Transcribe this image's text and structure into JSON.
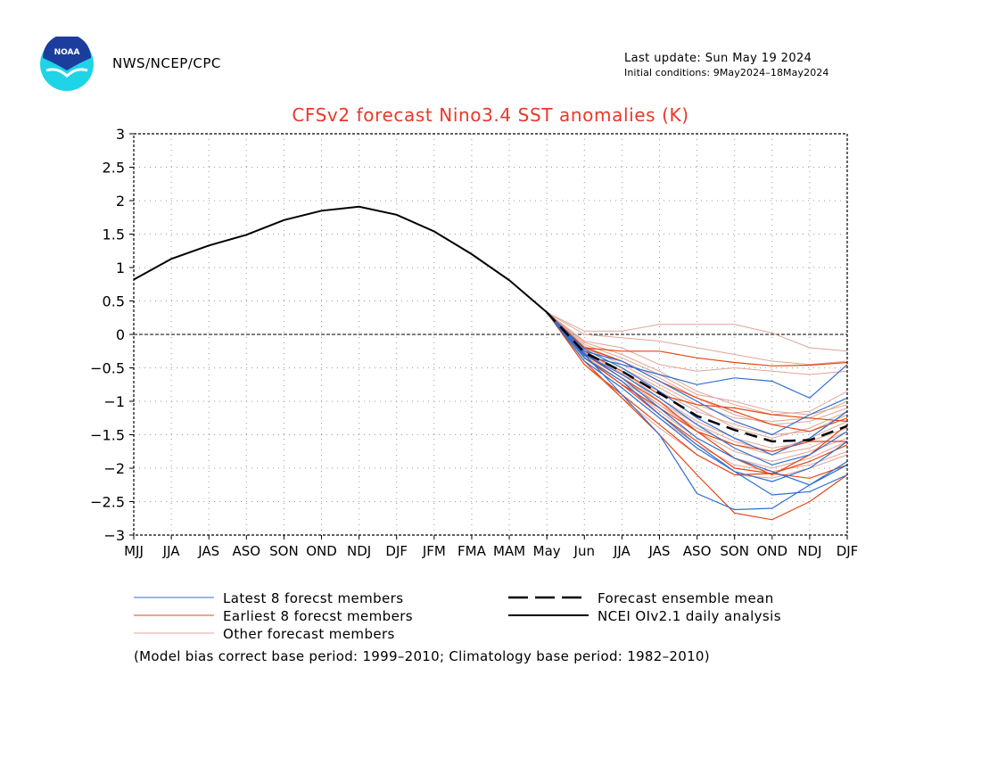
{
  "header": {
    "org": "NWS/NCEP/CPC",
    "last_update": "Last update: Sun May 19 2024",
    "initial_conditions": "Initial conditions: 9May2024–18May2024",
    "logo_text": "NOAA"
  },
  "footnote": "(Model bias correct base period: 1999–2010; Climatology base period: 1982–2010)",
  "colors": {
    "title": "#e8392a",
    "latest": "#2f6fd0",
    "earliest": "#e64512",
    "other": "#e0a597",
    "analysis": "#000000",
    "mean": "#000000",
    "grid": "#999999",
    "logo_blue": "#1a3d9e",
    "logo_cyan": "#1ed4e6"
  },
  "chart_data": {
    "type": "line",
    "title": "CFSv2 forecast Nino3.4 SST anomalies (K)",
    "xlabel": "",
    "ylabel": "",
    "categories": [
      "MJJ",
      "JJA",
      "JAS",
      "ASO",
      "SON",
      "OND",
      "NDJ",
      "DJF",
      "JFM",
      "FMA",
      "MAM",
      "May",
      "Jun",
      "JJA",
      "JAS",
      "ASO",
      "SON",
      "OND",
      "NDJ",
      "DJF"
    ],
    "ylim": [
      -3,
      3
    ],
    "yticks": [
      3,
      2.5,
      2,
      1.5,
      1,
      0.5,
      0,
      -0.5,
      -1,
      -1.5,
      -2,
      -2.5,
      -3
    ],
    "ytick_labels": [
      "3",
      "2.5",
      "2",
      "1.5",
      "1",
      "0.5",
      "0",
      "−0.5",
      "−1",
      "−1.5",
      "−2",
      "−2.5",
      "−3"
    ],
    "grid": true,
    "zero_line": true,
    "legend": [
      {
        "key": "latest",
        "label": "Latest 8 forecst members",
        "style": "thin-blue"
      },
      {
        "key": "earliest",
        "label": "Earliest 8 forecst members",
        "style": "thin-red"
      },
      {
        "key": "other",
        "label": "Other forecast members",
        "style": "thin-pink"
      },
      {
        "key": "mean",
        "label": "Forecast ensemble mean",
        "style": "dashed-black"
      },
      {
        "key": "analysis",
        "label": "NCEI OIv2.1 daily analysis",
        "style": "solid-black"
      }
    ],
    "analysis": {
      "name": "NCEI OIv2.1 daily analysis",
      "values": [
        0.82,
        1.13,
        1.33,
        1.49,
        1.71,
        1.85,
        1.91,
        1.79,
        1.54,
        1.2,
        0.81,
        0.33
      ]
    },
    "ensemble_mean": {
      "name": "Forecast ensemble mean",
      "start_index": 11,
      "values": [
        0.33,
        -0.27,
        -0.55,
        -0.88,
        -1.22,
        -1.43,
        -1.6,
        -1.58,
        -1.37
      ]
    },
    "latest_members": [
      [
        0.33,
        -0.32,
        -0.45,
        -0.6,
        -0.75,
        -0.65,
        -0.7,
        -0.95,
        -0.45
      ],
      [
        0.33,
        -0.25,
        -0.4,
        -0.7,
        -1.0,
        -1.3,
        -1.5,
        -1.2,
        -0.95
      ],
      [
        0.33,
        -0.35,
        -0.7,
        -1.2,
        -1.65,
        -2.05,
        -2.2,
        -2.0,
        -1.6
      ],
      [
        0.33,
        -0.3,
        -0.9,
        -1.5,
        -2.38,
        -2.62,
        -2.6,
        -2.25,
        -1.9
      ],
      [
        0.33,
        -0.28,
        -0.65,
        -1.1,
        -1.55,
        -1.85,
        -2.05,
        -2.25,
        -1.95
      ],
      [
        0.33,
        -0.22,
        -0.5,
        -0.85,
        -1.25,
        -1.55,
        -1.8,
        -1.55,
        -1.15
      ],
      [
        0.33,
        -0.4,
        -0.8,
        -1.25,
        -1.7,
        -2.05,
        -2.4,
        -2.35,
        -2.1
      ],
      [
        0.33,
        -0.3,
        -0.6,
        -0.95,
        -1.35,
        -1.7,
        -1.95,
        -1.8,
        -1.45
      ]
    ],
    "earliest_members": [
      [
        0.33,
        -0.2,
        -0.25,
        -0.25,
        -0.35,
        -0.42,
        -0.47,
        -0.46,
        -0.42
      ],
      [
        0.33,
        -0.35,
        -0.75,
        -1.2,
        -1.6,
        -2.0,
        -2.08,
        -1.9,
        -1.65
      ],
      [
        0.33,
        -0.4,
        -0.95,
        -1.5,
        -2.1,
        -2.67,
        -2.77,
        -2.5,
        -2.1
      ],
      [
        0.33,
        -0.3,
        -0.65,
        -1.0,
        -1.45,
        -1.85,
        -2.1,
        -1.8,
        -1.35
      ],
      [
        0.33,
        -0.45,
        -0.9,
        -1.35,
        -1.8,
        -2.1,
        -2.08,
        -2.15,
        -1.95
      ],
      [
        0.33,
        -0.25,
        -0.55,
        -0.9,
        -1.05,
        -1.1,
        -1.2,
        -1.25,
        -1.3
      ],
      [
        0.33,
        -0.35,
        -0.75,
        -1.1,
        -1.45,
        -1.65,
        -1.75,
        -1.6,
        -1.6
      ],
      [
        0.33,
        -0.2,
        -0.4,
        -0.7,
        -0.95,
        -1.15,
        -1.35,
        -1.45,
        -1.25
      ]
    ],
    "other_members": [
      [
        0.33,
        0.05,
        0.05,
        0.15,
        0.15,
        0.15,
        0.02,
        -0.2,
        -0.25
      ],
      [
        0.33,
        0.0,
        -0.05,
        -0.1,
        -0.2,
        -0.3,
        -0.4,
        -0.45,
        -0.4
      ],
      [
        0.33,
        -0.1,
        -0.2,
        -0.45,
        -0.55,
        -0.5,
        -0.55,
        -0.6,
        -0.55
      ],
      [
        0.33,
        -0.15,
        -0.35,
        -0.6,
        -0.9,
        -1.0,
        -1.15,
        -1.2,
        -1.05
      ],
      [
        0.33,
        -0.2,
        -0.45,
        -0.75,
        -1.05,
        -1.25,
        -1.3,
        -1.25,
        -1.0
      ],
      [
        0.33,
        -0.25,
        -0.55,
        -0.95,
        -1.3,
        -1.55,
        -1.7,
        -1.6,
        -1.4
      ],
      [
        0.33,
        -0.3,
        -0.65,
        -1.05,
        -1.45,
        -1.75,
        -1.9,
        -1.75,
        -1.55
      ],
      [
        0.33,
        -0.35,
        -0.7,
        -1.15,
        -1.55,
        -1.85,
        -2.0,
        -1.85,
        -1.6
      ],
      [
        0.33,
        -0.4,
        -0.8,
        -1.25,
        -1.65,
        -1.95,
        -2.05,
        -1.95,
        -1.75
      ],
      [
        0.33,
        -0.28,
        -0.6,
        -0.85,
        -1.15,
        -1.35,
        -1.5,
        -1.45,
        -1.2
      ],
      [
        0.33,
        -0.22,
        -0.5,
        -0.8,
        -1.1,
        -1.4,
        -1.55,
        -1.4,
        -1.15
      ],
      [
        0.33,
        -0.18,
        -0.4,
        -0.65,
        -0.95,
        -1.2,
        -1.35,
        -1.3,
        -1.1
      ],
      [
        0.33,
        -0.32,
        -0.7,
        -1.05,
        -1.4,
        -1.65,
        -1.8,
        -1.7,
        -1.45
      ],
      [
        0.33,
        -0.45,
        -0.95,
        -1.4,
        -1.8,
        -2.1,
        -2.15,
        -2.0,
        -1.8
      ],
      [
        0.33,
        -0.12,
        -0.3,
        -0.55,
        -0.85,
        -1.05,
        -1.2,
        -1.15,
        -0.85
      ],
      [
        0.33,
        -0.26,
        -0.58,
        -1.0,
        -1.35,
        -1.6,
        -1.75,
        -1.55,
        -1.3
      ]
    ]
  }
}
